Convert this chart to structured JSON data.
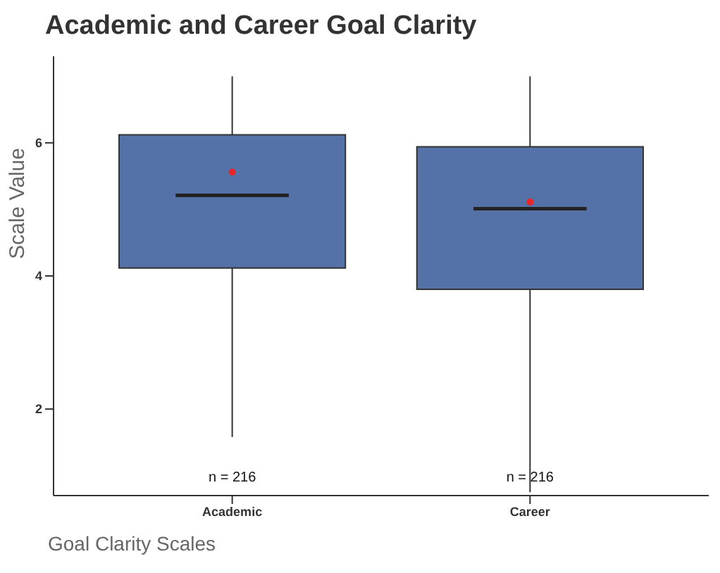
{
  "chart_data": {
    "type": "box",
    "title": "Academic and Career Goal Clarity",
    "xlabel": "Goal Clarity Scales",
    "ylabel": "Scale Value",
    "categories": [
      "Academic",
      "Career"
    ],
    "boxes": [
      {
        "low": 1.58,
        "q1": 4.12,
        "median": 5.21,
        "q3": 6.12,
        "high": 7.0,
        "mean": 5.56
      },
      {
        "low": 0.75,
        "q1": 3.8,
        "median": 5.01,
        "q3": 5.94,
        "high": 7.0,
        "mean": 5.11
      }
    ],
    "color": "#5572a8",
    "ylim": [
      0.7,
      7.3
    ],
    "yticks": [
      2,
      4,
      6
    ],
    "grid": false,
    "legend": false,
    "annotations": [
      "n = 216",
      "n = 216"
    ]
  }
}
